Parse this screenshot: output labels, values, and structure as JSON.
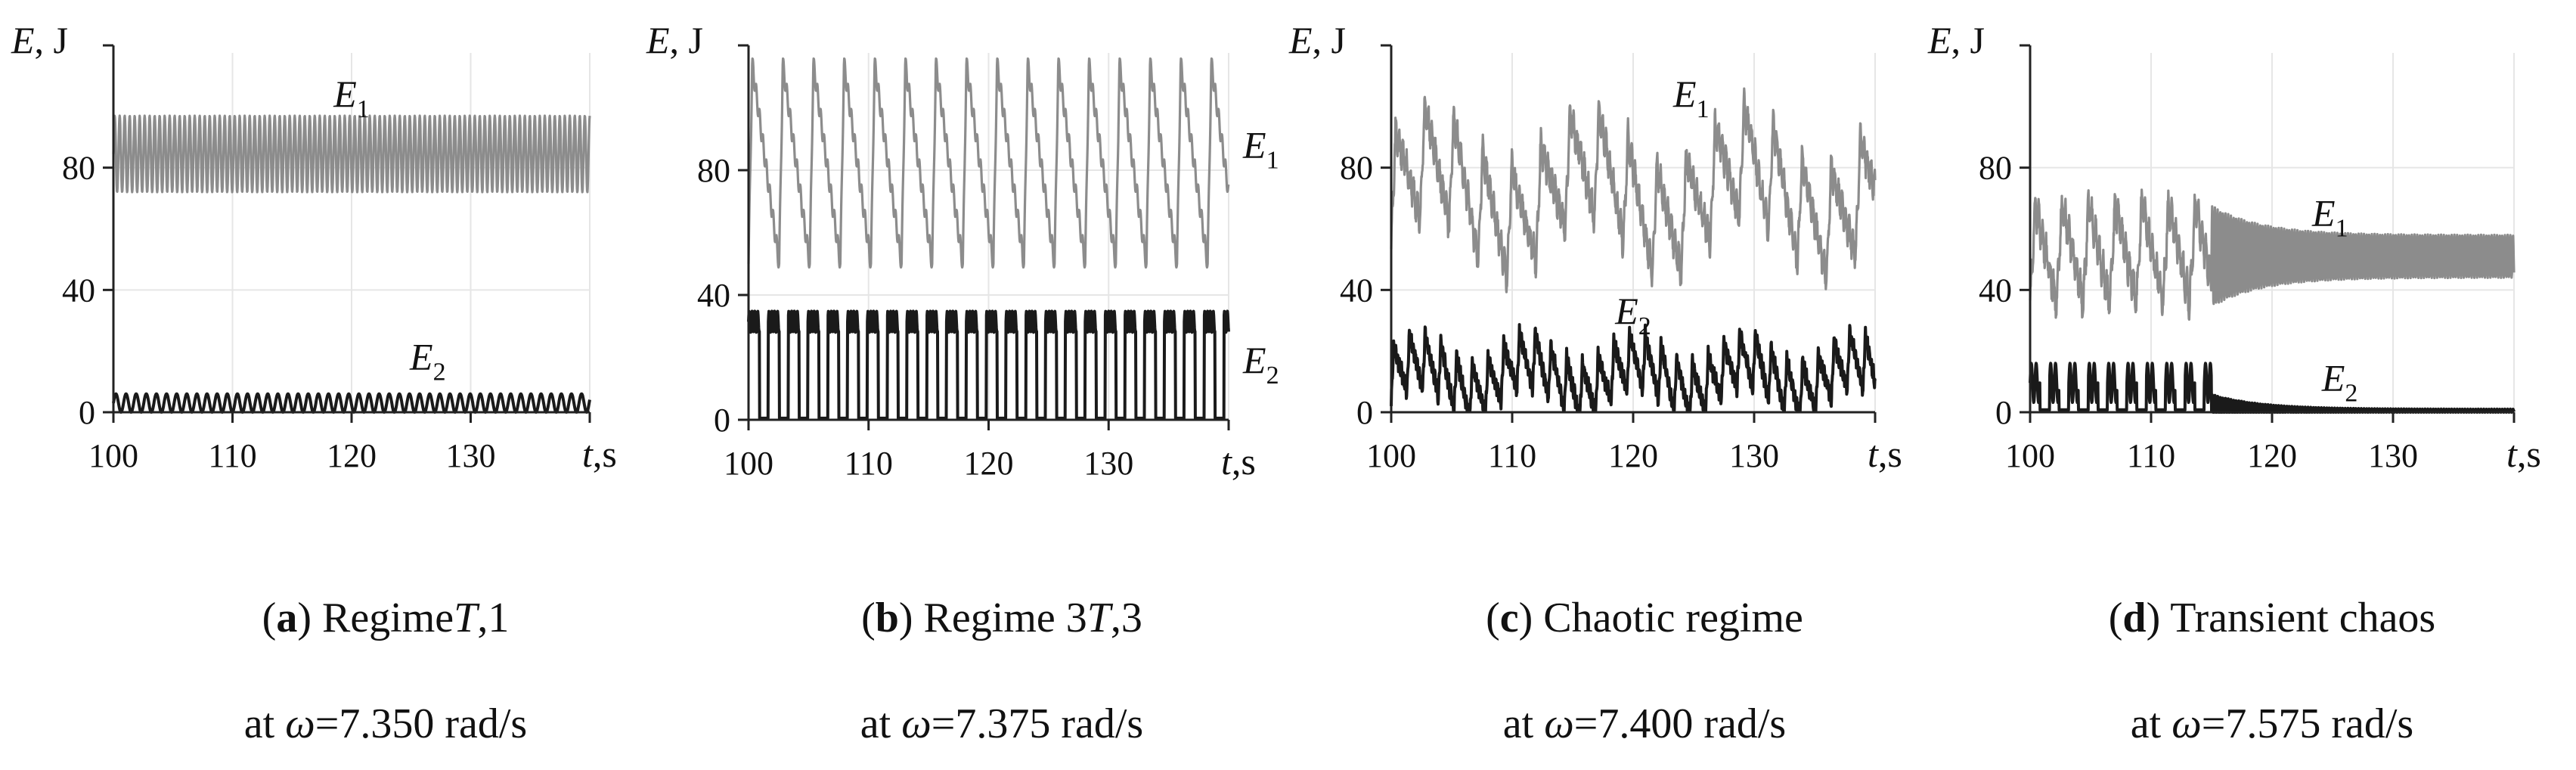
{
  "chart_data": [
    {
      "type": "line",
      "panel_letter": "a",
      "caption": "Regime",
      "caption_math": "T",
      "caption_suffix": ",1",
      "caption2_prefix": "at ",
      "caption2_symbol": "ω",
      "caption2_value": "=7.350 rad/s",
      "ylabel": "E, J",
      "xlabel": "t,s",
      "xlim": [
        100,
        140
      ],
      "ylim": [
        0,
        120
      ],
      "xticks": [
        100,
        110,
        120,
        130
      ],
      "yticks": [
        0,
        40,
        80
      ],
      "line_style": "dense",
      "series": [
        {
          "label": "E",
          "sub": "1",
          "color": "#8c8c8c",
          "center": 84.5,
          "amp": 12.5,
          "period": 0.42,
          "drift_amp": 0,
          "drift_period": 1,
          "kind": "osc"
        },
        {
          "label": "E",
          "sub": "2",
          "color": "#1a1a1a",
          "center": 3,
          "amp": 3,
          "period": 0.85,
          "drift_amp": 0,
          "drift_period": 1,
          "kind": "osc"
        }
      ]
    },
    {
      "type": "line",
      "panel_letter": "b",
      "caption": "Regime 3",
      "caption_math": "T",
      "caption_suffix": ",3",
      "caption2_prefix": "at ",
      "caption2_symbol": "ω",
      "caption2_value": "=7.375 rad/s",
      "ylabel": "E, J",
      "xlabel": "t,s",
      "xlim": [
        100,
        140
      ],
      "ylim": [
        0,
        120
      ],
      "xticks": [
        100,
        110,
        120,
        130
      ],
      "yticks": [
        0,
        40,
        80
      ],
      "line_style": "sawtooth",
      "series": [
        {
          "label": "E",
          "sub": "1",
          "color": "#8c8c8c",
          "center": 82,
          "amp": 32,
          "period": 2.55,
          "drift_amp": 0,
          "drift_period": 1,
          "kind": "saw"
        },
        {
          "label": "E",
          "sub": "2",
          "color": "#1a1a1a",
          "center": 17,
          "amp": 17,
          "period": 1.65,
          "drift_amp": 0,
          "drift_period": 1,
          "kind": "square"
        }
      ]
    },
    {
      "type": "line",
      "panel_letter": "c",
      "caption": "Chaotic regime",
      "caption_math": "",
      "caption_suffix": "",
      "caption2_prefix": "at ",
      "caption2_symbol": "ω",
      "caption2_value": "=7.400 rad/s",
      "ylabel": "E, J",
      "xlabel": "t,s",
      "xlim": [
        100,
        140
      ],
      "ylim": [
        0,
        120
      ],
      "xticks": [
        100,
        110,
        120,
        130
      ],
      "yticks": [
        0,
        40,
        80
      ],
      "line_style": "chaotic",
      "series": [
        {
          "label": "E",
          "sub": "1",
          "color": "#8c8c8c",
          "center": 72,
          "amp": 18,
          "period": 2.4,
          "drift_amp": 10,
          "drift_period": 13,
          "kind": "chaos"
        },
        {
          "label": "E",
          "sub": "2",
          "color": "#1a1a1a",
          "center": 12,
          "amp": 9,
          "period": 1.3,
          "drift_amp": 5,
          "drift_period": 9,
          "kind": "chaos"
        }
      ]
    },
    {
      "type": "line",
      "panel_letter": "d",
      "caption": "Transient chaos",
      "caption_math": "",
      "caption_suffix": "",
      "caption2_prefix": "at ",
      "caption2_symbol": "ω",
      "caption2_value": "=7.575 rad/s",
      "ylabel": "E, J",
      "xlabel": "t,s",
      "xlim": [
        100,
        140
      ],
      "ylim": [
        0,
        120
      ],
      "xticks": [
        100,
        110,
        120,
        130
      ],
      "yticks": [
        0,
        40,
        80
      ],
      "line_style": "transient",
      "transition_t": 115,
      "series": [
        {
          "label": "E",
          "sub": "1",
          "color": "#8c8c8c",
          "center": 52,
          "amp": 16,
          "period": 2.2,
          "drift_amp": 0,
          "drift_period": 1,
          "kind": "transient",
          "settled_center": 51,
          "settled_amp": 7
        },
        {
          "label": "E",
          "sub": "2",
          "color": "#1a1a1a",
          "center": 8,
          "amp": 8,
          "period": 1.6,
          "drift_amp": 0,
          "drift_period": 1,
          "kind": "transient",
          "settled_center": 0.5,
          "settled_amp": 0.5
        }
      ]
    }
  ]
}
